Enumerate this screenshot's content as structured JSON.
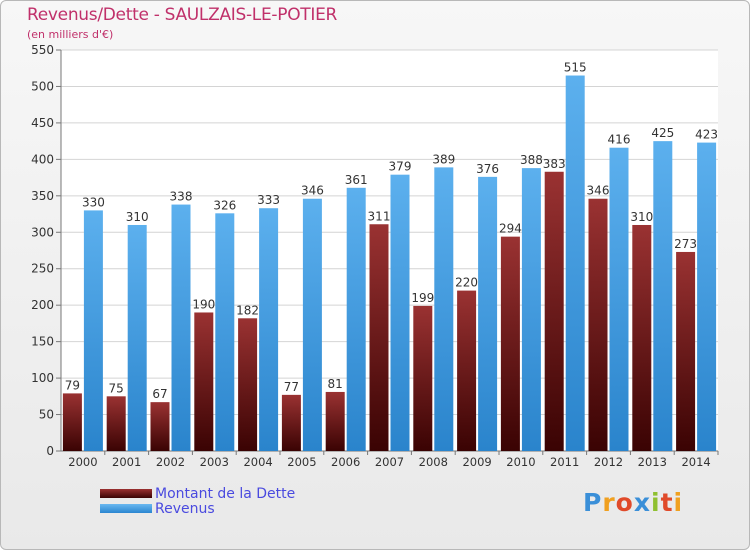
{
  "chart_data": {
    "type": "bar",
    "title": "Revenus/Dette - SAULZAIS-LE-POTIER",
    "subtitle": "(en milliers d'€)",
    "categories": [
      "2000",
      "2001",
      "2002",
      "2003",
      "2004",
      "2005",
      "2006",
      "2007",
      "2008",
      "2009",
      "2010",
      "2011",
      "2012",
      "2013",
      "2014"
    ],
    "series": [
      {
        "name": "Montant de la Dette",
        "color": "#7a1a1a",
        "values": [
          79,
          75,
          67,
          190,
          182,
          77,
          81,
          311,
          199,
          220,
          294,
          383,
          346,
          310,
          273
        ]
      },
      {
        "name": "Revenus",
        "color": "#3a96e0",
        "values": [
          330,
          310,
          338,
          326,
          333,
          346,
          361,
          379,
          389,
          376,
          388,
          515,
          416,
          425,
          423
        ]
      }
    ],
    "ylim": [
      0,
      550
    ],
    "yticks": [
      0,
      50,
      100,
      150,
      200,
      250,
      300,
      350,
      400,
      450,
      500,
      550
    ],
    "grid": true,
    "legend_position": "bottom-left"
  },
  "logo": {
    "letters": [
      "P",
      "r",
      "o",
      "x",
      "i",
      "t",
      "i"
    ],
    "colors": [
      "#3a8fd8",
      "#f0a020",
      "#e04a2a",
      "#3a8fd8",
      "#8fc030",
      "#e04a2a",
      "#f0a020"
    ]
  }
}
